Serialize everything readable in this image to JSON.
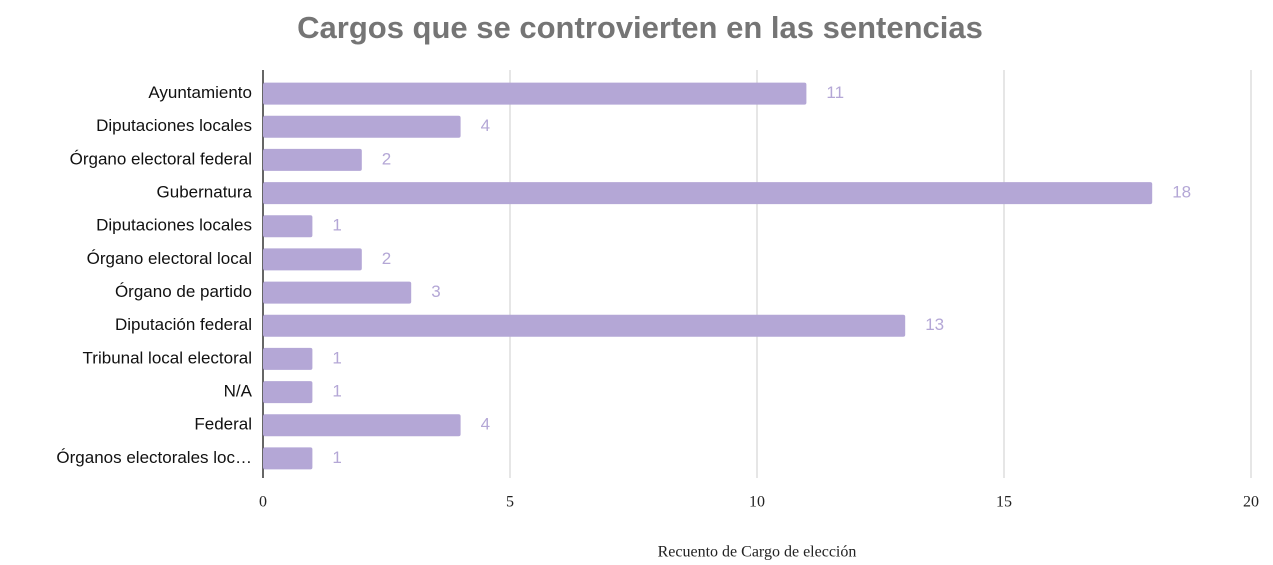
{
  "chart_data": {
    "type": "barh",
    "title": "Cargos que se controvierten en las sentencias",
    "categories": [
      "Ayuntamiento",
      "Diputaciones locales",
      "Órgano electoral federal",
      "Gubernatura",
      "Diputaciones locales",
      "Órgano electoral local",
      "Órgano de partido",
      "Diputación federal",
      "Tribunal local electoral",
      "N/A",
      "Federal",
      "Órganos electorales loc…"
    ],
    "values": [
      11,
      4,
      2,
      18,
      1,
      2,
      3,
      13,
      1,
      1,
      4,
      1
    ],
    "color": "#b4a7d6",
    "xlabel": "Recuento de Cargo de elección",
    "xlim": [
      0,
      20
    ],
    "xticks": [
      0,
      5,
      10,
      15,
      20
    ],
    "grid": true
  }
}
